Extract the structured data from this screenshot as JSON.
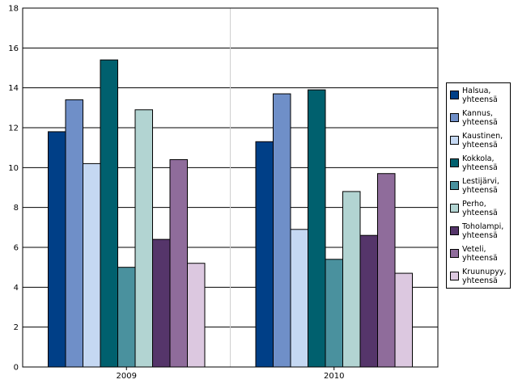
{
  "chart_data": {
    "type": "bar",
    "categories": [
      "2009",
      "2010"
    ],
    "ylim": [
      0,
      18
    ],
    "yticks": [
      0,
      2,
      4,
      6,
      8,
      10,
      12,
      14,
      16,
      18
    ],
    "grid": true,
    "legend_position": "right",
    "series": [
      {
        "name": "Halsua, yhteensä",
        "color": "#003f87",
        "values": [
          11.8,
          11.3
        ]
      },
      {
        "name": "Kannus, yhteensä",
        "color": "#6f8fc8",
        "values": [
          13.4,
          13.7
        ]
      },
      {
        "name": "Kaustinen, yhteensä",
        "color": "#c5d8f2",
        "values": [
          10.2,
          6.9
        ]
      },
      {
        "name": "Kokkola, yhteensä",
        "color": "#00606e",
        "values": [
          15.4,
          13.9
        ]
      },
      {
        "name": "Lestijärvi, yhteensä",
        "color": "#4a919e",
        "values": [
          5.0,
          5.4
        ]
      },
      {
        "name": "Perho, yhteensä",
        "color": "#b2d4d2",
        "values": [
          12.9,
          8.8
        ]
      },
      {
        "name": "Toholampi, yhteensä",
        "color": "#55356a",
        "values": [
          6.4,
          6.6
        ]
      },
      {
        "name": "Veteli, yhteensä",
        "color": "#8f6c9b",
        "values": [
          10.4,
          9.7
        ]
      },
      {
        "name": "Kruunupyy, yhteensä",
        "color": "#dcc8e0",
        "values": [
          5.2,
          4.7
        ]
      }
    ]
  }
}
